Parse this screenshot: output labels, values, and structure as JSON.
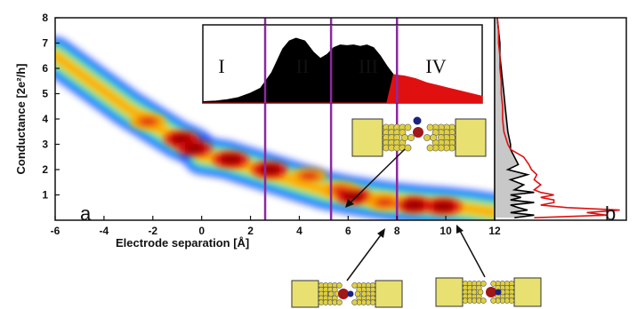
{
  "chart_data": [
    {
      "type": "heatmap",
      "panel_label": "a",
      "xlabel": "Electrode separation [Å]",
      "ylabel": "Conductance [2e²/h]",
      "xlim": [
        -6,
        12
      ],
      "ylim": [
        0,
        8
      ],
      "x_ticks": [
        "-6",
        "-4",
        "-2",
        "0",
        "2",
        "4",
        "6",
        "8",
        "10",
        "12"
      ],
      "y_ticks": [
        "1",
        "2",
        "3",
        "4",
        "5",
        "6",
        "7",
        "8"
      ],
      "grid": false,
      "colormap": [
        "#1a3cff",
        "#1eb6ff",
        "#30e070",
        "#e8e820",
        "#ffa500",
        "#e01010",
        "#8a0000"
      ],
      "ridges": [
        {
          "name": "",
          "x": [
            -6,
            -5,
            -4,
            -3,
            -2,
            -1,
            -0.3,
            0
          ],
          "y": [
            6.5,
            5.8,
            5.1,
            4.4,
            3.8,
            3.2,
            2.9,
            2.65
          ]
        },
        {
          "name": "",
          "x": [
            0,
            1,
            2,
            3,
            4,
            5,
            6,
            7,
            8,
            9,
            10,
            11,
            12
          ],
          "y": [
            2.55,
            2.4,
            2.1,
            1.8,
            1.5,
            1.2,
            1.0,
            0.85,
            0.72,
            0.62,
            0.55,
            0.45,
            0.3
          ]
        }
      ],
      "hotspots": [
        {
          "x": -2.2,
          "y": 3.9,
          "level": 5
        },
        {
          "x": -0.8,
          "y": 3.2,
          "level": 6
        },
        {
          "x": -0.3,
          "y": 2.85,
          "level": 6
        },
        {
          "x": 1.2,
          "y": 2.4,
          "level": 6
        },
        {
          "x": 2.8,
          "y": 2.0,
          "level": 6
        },
        {
          "x": 4.4,
          "y": 1.75,
          "level": 5
        },
        {
          "x": 5.7,
          "y": 1.2,
          "level": 5
        },
        {
          "x": 6.2,
          "y": 0.95,
          "level": 6
        },
        {
          "x": 7.5,
          "y": 0.7,
          "level": 5
        },
        {
          "x": 8.7,
          "y": 0.6,
          "level": 6
        },
        {
          "x": 9.9,
          "y": 0.55,
          "level": 6
        }
      ],
      "dividers_x": [
        2.6,
        5.3,
        8.0
      ],
      "divider_color": "#8b2a9e"
    },
    {
      "type": "area",
      "role": "inset",
      "regions": [
        "I",
        "II",
        "III",
        "IV"
      ],
      "x": [
        -0.6,
        0,
        0.5,
        1,
        1.5,
        2,
        2.5,
        3,
        3.3,
        3.6,
        4,
        4.4,
        4.7,
        5,
        5.3,
        5.6,
        5.9,
        6.2,
        6.5,
        6.8,
        7.1,
        7.4,
        7.7,
        8,
        8.5,
        9,
        9.5,
        10,
        10.5,
        11,
        11.5,
        12
      ],
      "series": [
        {
          "name": "",
          "color": "#000000",
          "values": [
            0.02,
            0.03,
            0.05,
            0.08,
            0.14,
            0.22,
            0.45,
            0.8,
            0.92,
            0.96,
            0.92,
            0.75,
            0.66,
            0.72,
            0.82,
            0.86,
            0.85,
            0.86,
            0.84,
            0.86,
            0.82,
            0.7,
            0.55,
            0.42,
            0,
            0,
            0,
            0,
            0,
            0,
            0,
            0
          ]
        },
        {
          "name": "",
          "color": "#e01010",
          "values": [
            0,
            0,
            0,
            0,
            0,
            0,
            0,
            0,
            0,
            0,
            0,
            0,
            0,
            0,
            0,
            0,
            0,
            0,
            0,
            0,
            0,
            0,
            0,
            0.42,
            0.4,
            0.36,
            0.3,
            0.26,
            0.22,
            0.18,
            0.14,
            0.1
          ]
        }
      ]
    },
    {
      "type": "line",
      "panel_label": "b",
      "orientation": "horizontal",
      "ylim": [
        0,
        8
      ],
      "conductance": [
        0.1,
        0.2,
        0.3,
        0.4,
        0.5,
        0.6,
        0.7,
        0.8,
        0.9,
        1.0,
        1.1,
        1.2,
        1.4,
        1.6,
        1.8,
        2.0,
        2.2,
        2.5,
        2.8,
        3.0,
        3.5,
        4.0,
        4.5,
        5.0,
        5.5,
        6.0,
        6.5,
        7.0,
        7.5,
        8.0
      ],
      "series": [
        {
          "name": "",
          "color": "#e01010",
          "values": [
            0.3,
            0.85,
            0.7,
            0.95,
            0.55,
            0.35,
            0.45,
            0.45,
            0.35,
            0.45,
            0.35,
            0.3,
            0.35,
            0.3,
            0.32,
            0.28,
            0.26,
            0.22,
            0.12,
            0.1,
            0.07,
            0.06,
            0.06,
            0.05,
            0.05,
            0.04,
            0.04,
            0.03,
            0.03,
            0.02
          ]
        },
        {
          "name": "",
          "color": "#000000",
          "fill": "#c8c8c8",
          "values": [
            0.15,
            0.3,
            0.12,
            0.25,
            0.18,
            0.12,
            0.3,
            0.12,
            0.2,
            0.12,
            0.3,
            0.15,
            0.22,
            0.12,
            0.25,
            0.1,
            0.18,
            0.15,
            0.12,
            0.12,
            0.1,
            0.09,
            0.08,
            0.07,
            0.06,
            0.05,
            0.04,
            0.04,
            0.03,
            0.02
          ]
        }
      ]
    }
  ],
  "molecule_colors": {
    "electrode": "#e8e070",
    "atom": "#e0d040",
    "oxygen": "#a01818",
    "hydrogen": "#1a237e"
  }
}
